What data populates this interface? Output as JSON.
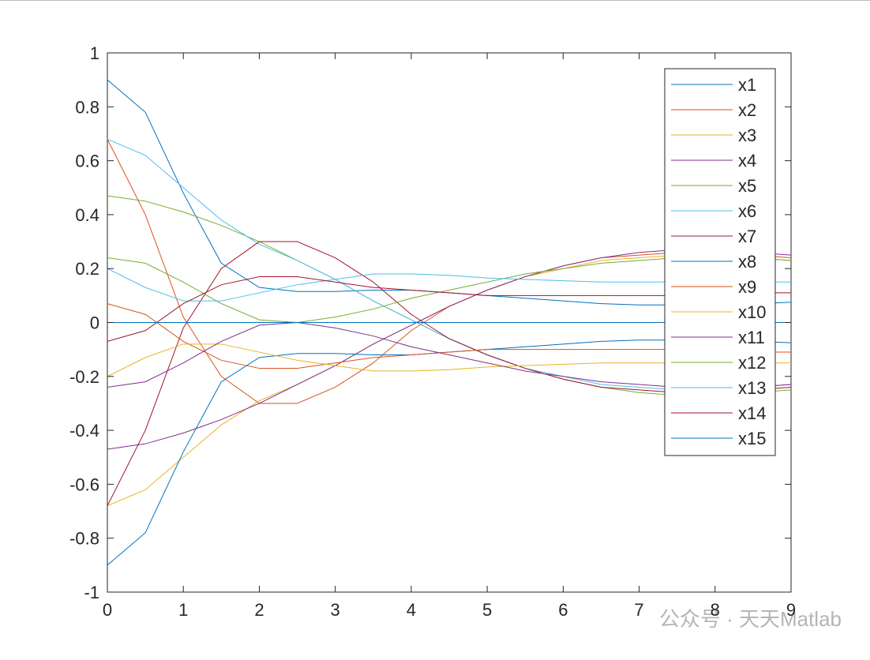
{
  "chart_data": {
    "type": "line",
    "x": [
      0,
      0.5,
      1,
      1.5,
      2,
      2.5,
      3,
      3.5,
      4,
      4.5,
      5,
      5.5,
      6,
      6.5,
      7,
      7.5,
      8,
      8.5,
      9
    ],
    "series": [
      {
        "name": "x1",
        "color": "#0072bd",
        "values": [
          0.9,
          0.78,
          0.48,
          0.22,
          0.13,
          0.115,
          0.115,
          0.12,
          0.12,
          0.11,
          0.1,
          0.09,
          0.08,
          0.07,
          0.065,
          0.065,
          0.065,
          0.07,
          0.075
        ]
      },
      {
        "name": "x2",
        "color": "#d95319",
        "values": [
          0.68,
          0.4,
          0.02,
          -0.2,
          -0.3,
          -0.3,
          -0.24,
          -0.15,
          -0.03,
          0.06,
          0.12,
          0.17,
          0.21,
          0.24,
          0.25,
          0.26,
          0.26,
          0.25,
          0.24
        ]
      },
      {
        "name": "x3",
        "color": "#edb120",
        "values": [
          -0.68,
          -0.62,
          -0.5,
          -0.38,
          -0.29,
          -0.23,
          -0.16,
          -0.08,
          -0.01,
          0.06,
          0.12,
          0.17,
          0.2,
          0.23,
          0.24,
          0.25,
          0.25,
          0.24,
          0.23
        ]
      },
      {
        "name": "x4",
        "color": "#7e2f8e",
        "values": [
          -0.47,
          -0.45,
          -0.41,
          -0.36,
          -0.3,
          -0.23,
          -0.16,
          -0.08,
          -0.01,
          0.06,
          0.12,
          0.17,
          0.21,
          0.24,
          0.26,
          0.27,
          0.27,
          0.26,
          0.25
        ]
      },
      {
        "name": "x5",
        "color": "#77ac30",
        "values": [
          0.47,
          0.45,
          0.41,
          0.36,
          0.3,
          0.23,
          0.16,
          0.08,
          0.01,
          -0.06,
          -0.12,
          -0.17,
          -0.21,
          -0.24,
          -0.26,
          -0.27,
          -0.27,
          -0.26,
          -0.25
        ]
      },
      {
        "name": "x6",
        "color": "#4dbeee",
        "values": [
          0.68,
          0.62,
          0.5,
          0.38,
          0.29,
          0.23,
          0.16,
          0.08,
          0.01,
          -0.06,
          -0.12,
          -0.17,
          -0.2,
          -0.23,
          -0.24,
          -0.25,
          -0.25,
          -0.24,
          -0.23
        ]
      },
      {
        "name": "x7",
        "color": "#a2142f",
        "values": [
          -0.68,
          -0.4,
          -0.02,
          0.2,
          0.3,
          0.3,
          0.24,
          0.15,
          0.03,
          -0.06,
          -0.12,
          -0.17,
          -0.21,
          -0.24,
          -0.25,
          -0.26,
          -0.26,
          -0.25,
          -0.24
        ]
      },
      {
        "name": "x8",
        "color": "#0072bd",
        "values": [
          -0.9,
          -0.78,
          -0.48,
          -0.22,
          -0.13,
          -0.115,
          -0.115,
          -0.12,
          -0.12,
          -0.11,
          -0.1,
          -0.09,
          -0.08,
          -0.07,
          -0.065,
          -0.065,
          -0.065,
          -0.07,
          -0.075
        ]
      },
      {
        "name": "x9",
        "color": "#d95319",
        "values": [
          0.07,
          0.03,
          -0.07,
          -0.14,
          -0.17,
          -0.17,
          -0.15,
          -0.13,
          -0.12,
          -0.11,
          -0.1,
          -0.1,
          -0.1,
          -0.1,
          -0.1,
          -0.1,
          -0.1,
          -0.11,
          -0.11
        ]
      },
      {
        "name": "x10",
        "color": "#edb120",
        "values": [
          -0.2,
          -0.13,
          -0.08,
          -0.08,
          -0.11,
          -0.14,
          -0.16,
          -0.18,
          -0.18,
          -0.175,
          -0.165,
          -0.16,
          -0.155,
          -0.15,
          -0.15,
          -0.15,
          -0.15,
          -0.15,
          -0.15
        ]
      },
      {
        "name": "x11",
        "color": "#7e2f8e",
        "values": [
          -0.24,
          -0.22,
          -0.15,
          -0.07,
          -0.01,
          0,
          -0.02,
          -0.05,
          -0.09,
          -0.12,
          -0.15,
          -0.18,
          -0.2,
          -0.22,
          -0.23,
          -0.24,
          -0.24,
          -0.24,
          -0.23
        ]
      },
      {
        "name": "x12",
        "color": "#77ac30",
        "values": [
          0.24,
          0.22,
          0.15,
          0.07,
          0.01,
          0,
          0.02,
          0.05,
          0.09,
          0.12,
          0.15,
          0.18,
          0.2,
          0.22,
          0.23,
          0.24,
          0.24,
          0.24,
          0.23
        ]
      },
      {
        "name": "x13",
        "color": "#4dbeee",
        "values": [
          0.2,
          0.13,
          0.08,
          0.08,
          0.11,
          0.14,
          0.16,
          0.18,
          0.18,
          0.175,
          0.165,
          0.16,
          0.155,
          0.15,
          0.15,
          0.15,
          0.15,
          0.15,
          0.15
        ]
      },
      {
        "name": "x14",
        "color": "#a2142f",
        "values": [
          -0.07,
          -0.03,
          0.07,
          0.14,
          0.17,
          0.17,
          0.15,
          0.13,
          0.12,
          0.11,
          0.1,
          0.1,
          0.1,
          0.1,
          0.1,
          0.1,
          0.1,
          0.11,
          0.11
        ]
      },
      {
        "name": "x15",
        "color": "#0072bd",
        "values": [
          0,
          0,
          0,
          0,
          0,
          0,
          0,
          0,
          0,
          0,
          0,
          0,
          0,
          0,
          0,
          0,
          0,
          0,
          0
        ]
      }
    ],
    "xlim": [
      0,
      9
    ],
    "xticks": [
      0,
      1,
      2,
      3,
      4,
      5,
      6,
      7,
      8,
      9
    ],
    "ylim": [
      -1,
      1
    ],
    "yticks": [
      -1,
      -0.8,
      -0.6,
      -0.4,
      -0.2,
      0,
      0.2,
      0.4,
      0.6,
      0.8,
      1
    ],
    "legend": "top-right",
    "watermark": "公众号 · 天天Matlab"
  }
}
